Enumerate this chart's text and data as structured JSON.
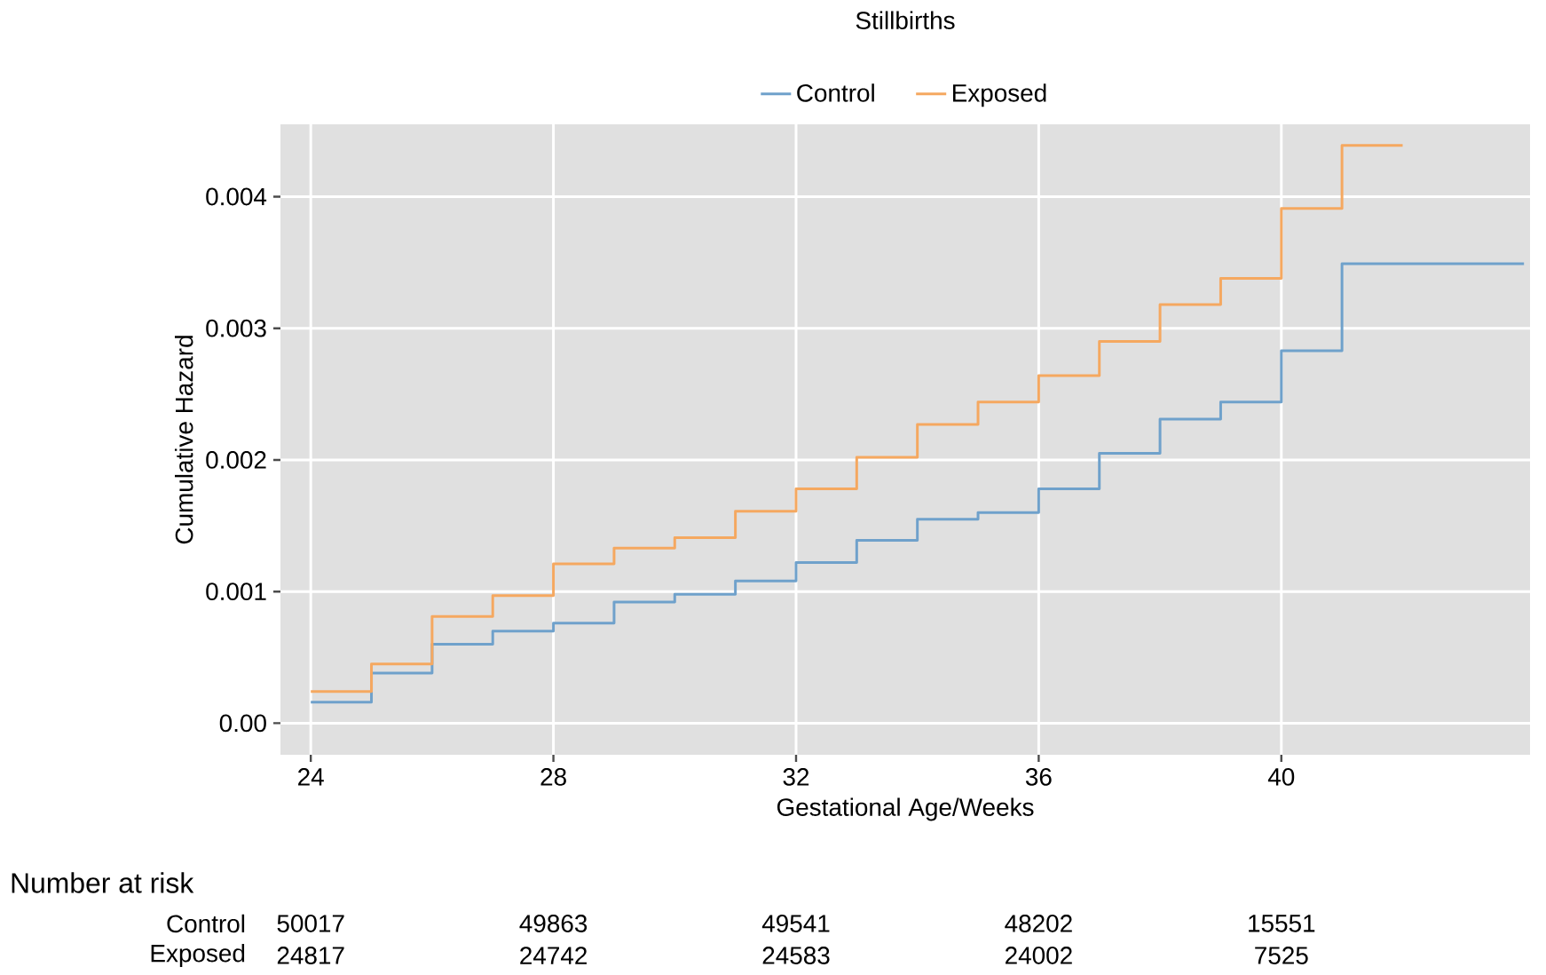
{
  "chart_data": {
    "type": "step",
    "title": "Stillbirths",
    "xlabel": "Gestational Age/Weeks",
    "ylabel": "Cumulative Hazard",
    "series": [
      {
        "name": "Control",
        "color": "#6fa1cb",
        "x": [
          24,
          25,
          26,
          27,
          28,
          29,
          30,
          31,
          32,
          33,
          34,
          35,
          36,
          37,
          38,
          39,
          40,
          41,
          44
        ],
        "values": [
          0.00016,
          0.00038,
          0.0006,
          0.0007,
          0.00076,
          0.00092,
          0.00098,
          0.00108,
          0.00122,
          0.00139,
          0.00155,
          0.0016,
          0.00178,
          0.00205,
          0.00231,
          0.00244,
          0.00283,
          0.00349,
          0.00349
        ]
      },
      {
        "name": "Exposed",
        "color": "#f5a860",
        "x": [
          24,
          25,
          26,
          27,
          28,
          29,
          30,
          31,
          32,
          33,
          34,
          35,
          36,
          37,
          38,
          39,
          40,
          41,
          42
        ],
        "values": [
          0.00024,
          0.00045,
          0.00081,
          0.00097,
          0.00121,
          0.00133,
          0.00141,
          0.00161,
          0.00178,
          0.00202,
          0.00227,
          0.00244,
          0.00264,
          0.0029,
          0.00318,
          0.00338,
          0.00391,
          0.00439,
          0.00439
        ]
      }
    ],
    "xlim": [
      23.5,
      44.1
    ],
    "xticks": [
      24,
      28,
      32,
      36,
      40
    ],
    "ylim": [
      -0.00024,
      0.00455
    ],
    "yticks": [
      {
        "value": 0,
        "label": "0.00"
      },
      0.001,
      0.002,
      0.003,
      0.004
    ],
    "grid": true,
    "legend": "top",
    "line_style": "solid",
    "marker": "none",
    "annotations": [
      "Number at risk",
      "Control",
      "50017",
      "49863",
      "49541",
      "48202",
      "15551",
      "Exposed",
      "24817",
      "24742",
      "24583",
      "24002",
      "7525"
    ]
  }
}
